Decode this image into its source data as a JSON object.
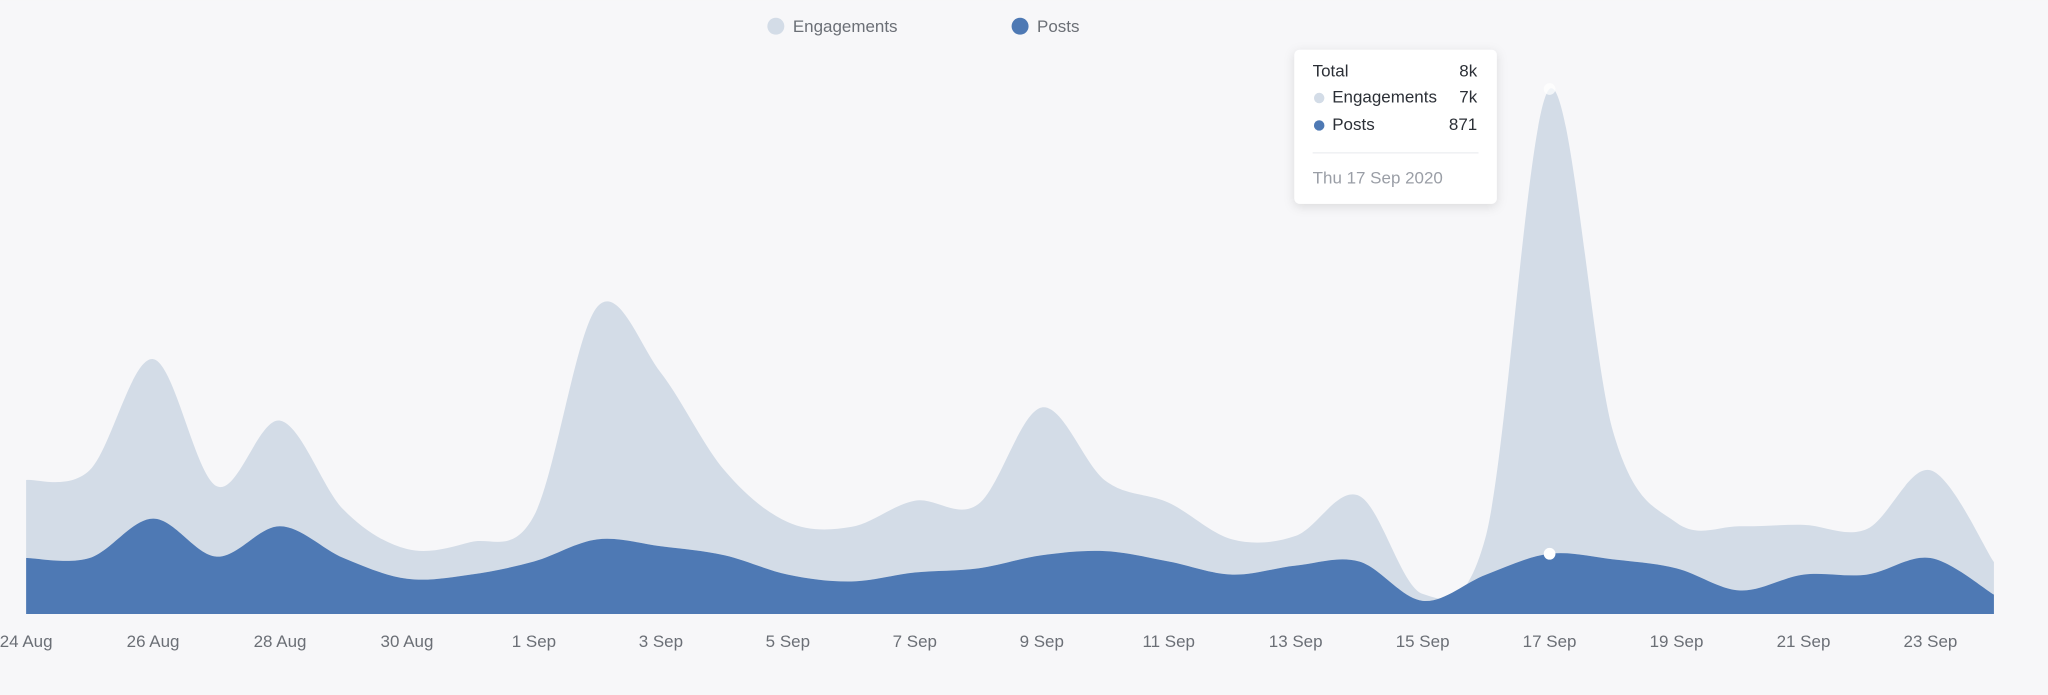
{
  "chart_data": {
    "type": "stacked-area",
    "categories": [
      "24 Aug",
      null,
      "26 Aug",
      null,
      "28 Aug",
      null,
      "30 Aug",
      null,
      "1 Sep",
      null,
      "3 Sep",
      null,
      "5 Sep",
      null,
      "7 Sep",
      null,
      "9 Sep",
      null,
      "11 Sep",
      null,
      "13 Sep",
      null,
      "15 Sep",
      null,
      "17 Sep",
      null,
      "19 Sep",
      null,
      "21 Sep",
      null,
      "23 Sep",
      null
    ],
    "series": [
      {
        "name": "Engagements",
        "color": "#d3dce7",
        "values": [
          1130,
          1270,
          2310,
          1020,
          1530,
          700,
          430,
          470,
          660,
          3370,
          2510,
          1230,
          760,
          790,
          1040,
          930,
          2140,
          1020,
          850,
          510,
          430,
          950,
          100,
          570,
          6730,
          1850,
          660,
          930,
          720,
          660,
          1270,
          470
        ]
      },
      {
        "name": "Posts",
        "color": "#4e79b4",
        "values": [
          810,
          810,
          1380,
          830,
          1270,
          810,
          510,
          570,
          760,
          1080,
          980,
          850,
          570,
          470,
          600,
          660,
          850,
          910,
          760,
          570,
          700,
          760,
          190,
          570,
          871,
          790,
          660,
          340,
          570,
          570,
          810,
          280
        ]
      }
    ],
    "ylim": [
      0,
      8000
    ],
    "tooltip": {
      "title": "Total",
      "total": "8k",
      "values": [
        "7k",
        "871"
      ],
      "date": "Thu 17 Sep 2020"
    }
  }
}
